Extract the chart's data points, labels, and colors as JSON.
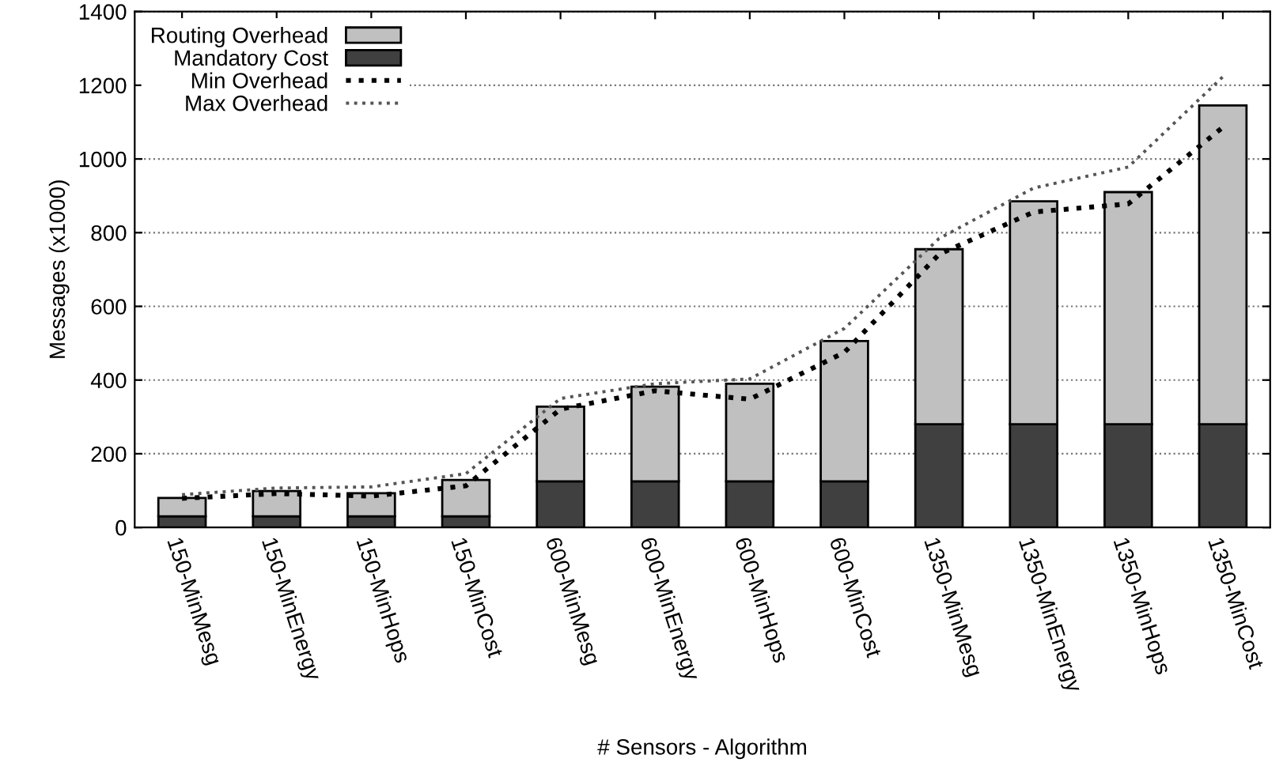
{
  "chart_data": {
    "type": "bar",
    "stacked": true,
    "xlabel": "# Sensors - Algorithm",
    "ylabel": "Messages (x1000)",
    "categories": [
      "150-MinMesg",
      "150-MinEnergy",
      "150-MinHops",
      "150-MinCost",
      "600-MinMesg",
      "600-MinEnergy",
      "600-MinHops",
      "600-MinCost",
      "1350-MinMesg",
      "1350-MinEnergy",
      "1350-MinHops",
      "1350-MinCost"
    ],
    "series": [
      {
        "name": "Mandatory Cost",
        "color": "#404040",
        "values": [
          30,
          30,
          30,
          30,
          125,
          125,
          125,
          125,
          280,
          280,
          280,
          280
        ]
      },
      {
        "name": "Routing Overhead",
        "color": "#c0c0c0",
        "values": [
          50,
          69,
          63,
          99,
          203,
          257,
          265,
          381,
          475,
          605,
          630,
          865
        ]
      },
      {
        "name": "Min Overhead",
        "type": "line",
        "color": "#000000",
        "line_style": "dotted",
        "values": [
          79,
          92,
          85,
          113,
          321,
          371,
          348,
          475,
          741,
          856,
          878,
          1086
        ]
      },
      {
        "name": "Max Overhead",
        "type": "line",
        "color": "#555555",
        "line_style": "dotted",
        "values": [
          89,
          107,
          110,
          146,
          350,
          390,
          403,
          540,
          784,
          921,
          978,
          1223
        ]
      }
    ],
    "ylim": [
      0,
      1400
    ],
    "yticks": [
      0,
      200,
      400,
      600,
      800,
      1000,
      1200,
      1400
    ],
    "grid": "y",
    "legend": "top left"
  }
}
